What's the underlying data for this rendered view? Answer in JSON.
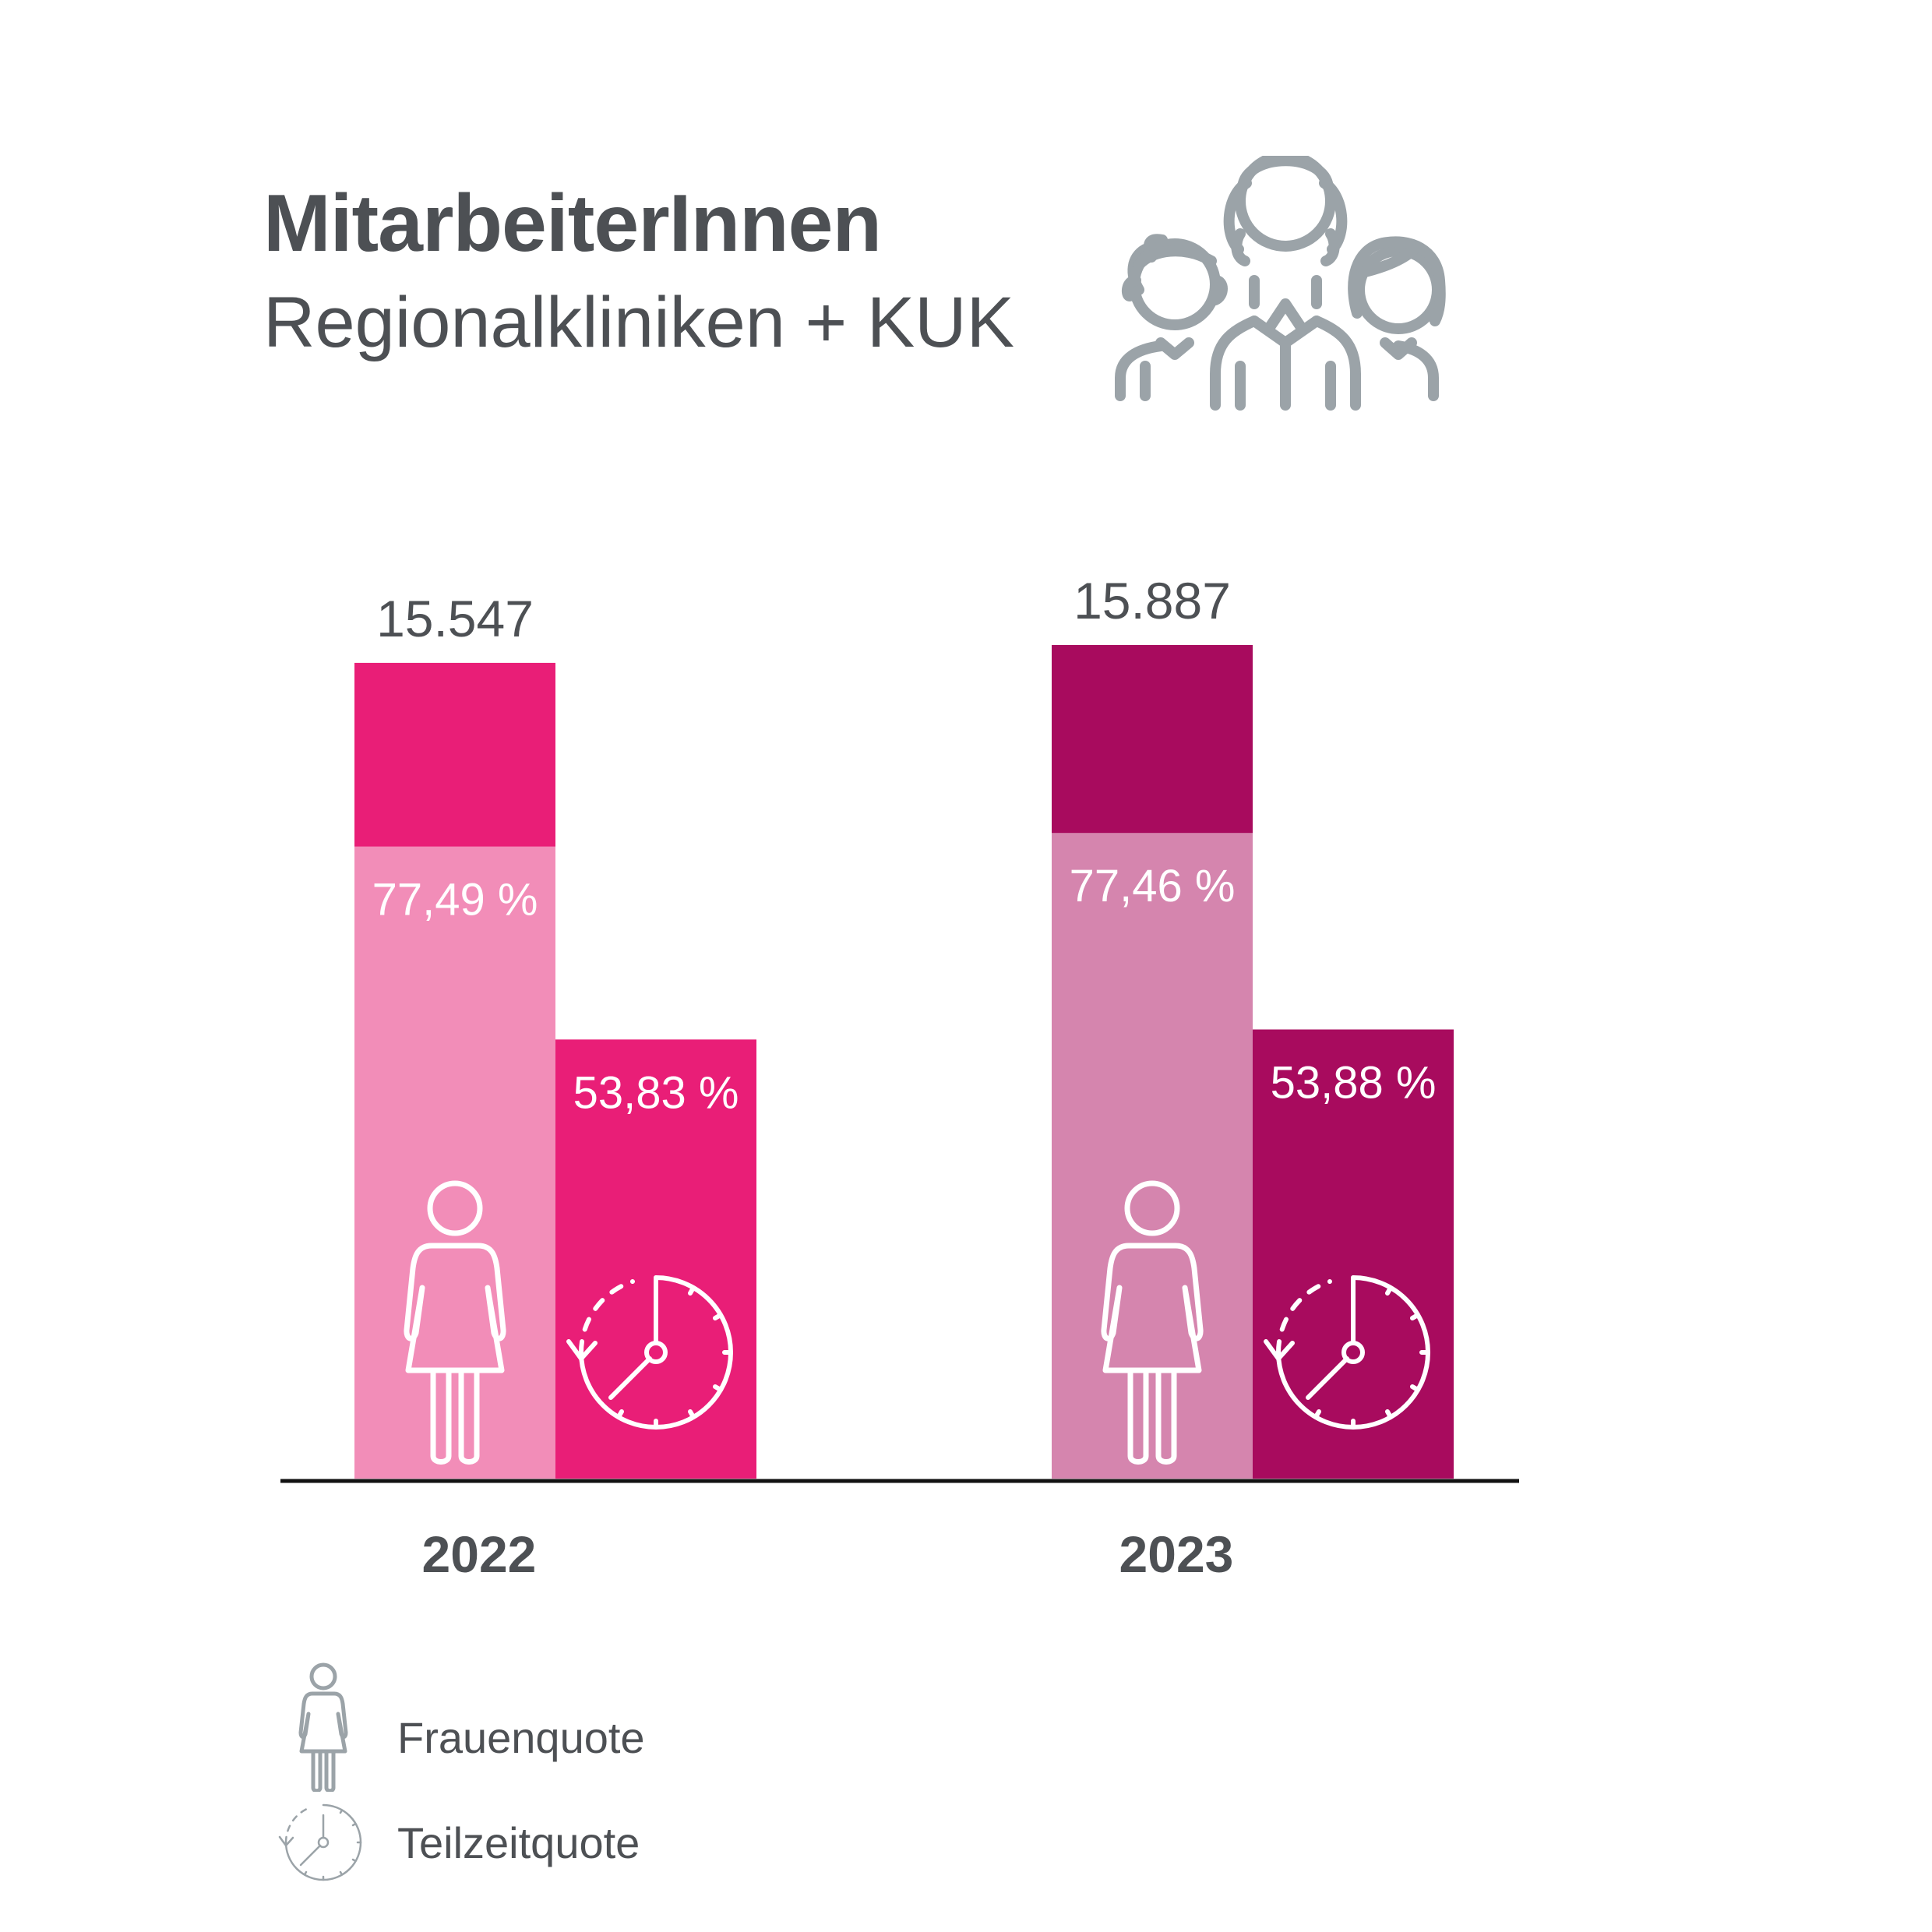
{
  "header": {
    "title": "MitarbeiterInnen",
    "subtitle": "Regionalkliniken + KUK",
    "icon": "people-group-icon"
  },
  "chart_data": {
    "type": "bar",
    "categories": [
      "2022",
      "2023"
    ],
    "totals": [
      {
        "label": "15.547",
        "value": 15547
      },
      {
        "label": "15.887",
        "value": 15887
      }
    ],
    "series": [
      {
        "name": "Frauenquote",
        "values": [
          77.49,
          77.46
        ],
        "labels": [
          "77,49 %",
          "77,46 %"
        ]
      },
      {
        "name": "Teilzeitquote",
        "values": [
          53.83,
          53.88
        ],
        "labels": [
          "53,83 %",
          "53,88 %"
        ]
      }
    ],
    "colors": {
      "2022": {
        "total": "#e91e77",
        "frauen": "#f28db8",
        "teilzeit": "#e91e77"
      },
      "2023": {
        "total": "#a80b5e",
        "frauen": "#d585ae",
        "teilzeit": "#a80b5e"
      }
    }
  },
  "legend": [
    {
      "label": "Frauenquote",
      "icon": "woman-icon"
    },
    {
      "label": "Teilzeitquote",
      "icon": "clock-icon"
    }
  ]
}
